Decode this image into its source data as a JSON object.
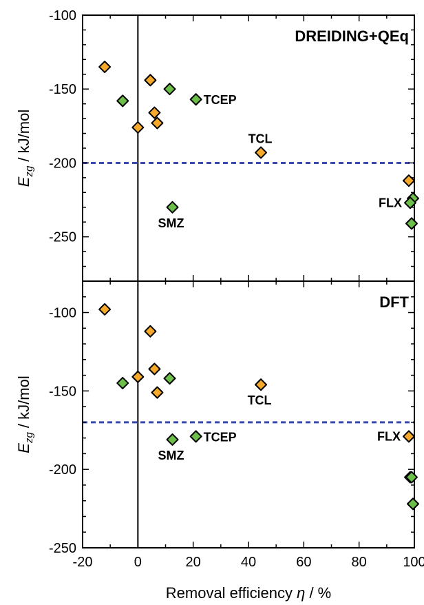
{
  "chart_data": [
    {
      "type": "scatter",
      "title": "DREIDING+QEq",
      "ylabel_main": "E",
      "ylabel_sub": "zg",
      "ylabel_unit": " / kJ/mol",
      "xlim": [
        -20,
        100
      ],
      "ylim": [
        -280,
        -100
      ],
      "yticks": [
        -100,
        -150,
        -200,
        -250
      ],
      "reference_line": {
        "axis": "y",
        "value": -200,
        "color": "#3d4ba8",
        "style": "dashed"
      },
      "vline": 0,
      "colors": {
        "orange": "#f7a92b",
        "green": "#6cc04a"
      },
      "points": [
        {
          "x": -12,
          "y": -135,
          "color": "orange"
        },
        {
          "x": -5.5,
          "y": -158,
          "color": "green"
        },
        {
          "x": 4.5,
          "y": -144,
          "color": "orange"
        },
        {
          "x": 11.5,
          "y": -150,
          "color": "green"
        },
        {
          "x": 21,
          "y": -157,
          "color": "green",
          "label": "TCEP",
          "label_pos": "right"
        },
        {
          "x": 6,
          "y": -166,
          "color": "orange"
        },
        {
          "x": 7,
          "y": -173,
          "color": "orange"
        },
        {
          "x": 0,
          "y": -176,
          "color": "orange"
        },
        {
          "x": 44.5,
          "y": -193,
          "color": "orange",
          "label": "TCL",
          "label_pos": "above"
        },
        {
          "x": 12.5,
          "y": -230,
          "color": "green",
          "label": "SMZ",
          "label_pos": "below"
        },
        {
          "x": 98,
          "y": -212,
          "color": "orange"
        },
        {
          "x": 99.5,
          "y": -224,
          "color": "green"
        },
        {
          "x": 98.5,
          "y": -227,
          "color": "green",
          "label": "FLX",
          "label_pos": "left"
        },
        {
          "x": 99,
          "y": -241,
          "color": "green"
        }
      ]
    },
    {
      "type": "scatter",
      "title": "DFT",
      "ylabel_main": "E",
      "ylabel_sub": "zg",
      "ylabel_unit": " / kJ/mol",
      "xlabel_main": "Removal efficiency ",
      "xlabel_sym": "η",
      "xlabel_unit": " / %",
      "xlim": [
        -20,
        100
      ],
      "ylim": [
        -250,
        -80
      ],
      "xticks": [
        -20,
        0,
        20,
        40,
        60,
        80,
        100
      ],
      "yticks": [
        -100,
        -150,
        -200,
        -250
      ],
      "reference_line": {
        "axis": "y",
        "value": -170,
        "color": "#3d4ba8",
        "style": "dashed"
      },
      "vline": 0,
      "colors": {
        "orange": "#f7a92b",
        "green": "#6cc04a"
      },
      "points": [
        {
          "x": -12,
          "y": -98,
          "color": "orange"
        },
        {
          "x": 4.5,
          "y": -112,
          "color": "orange"
        },
        {
          "x": 6,
          "y": -136,
          "color": "orange"
        },
        {
          "x": 0,
          "y": -141,
          "color": "orange"
        },
        {
          "x": -5.5,
          "y": -145,
          "color": "green"
        },
        {
          "x": 11.5,
          "y": -142,
          "color": "green"
        },
        {
          "x": 7,
          "y": -151,
          "color": "orange"
        },
        {
          "x": 44.5,
          "y": -146,
          "color": "orange",
          "label": "TCL",
          "label_pos": "below"
        },
        {
          "x": 12.5,
          "y": -181,
          "color": "green",
          "label": "SMZ",
          "label_pos": "below"
        },
        {
          "x": 21,
          "y": -179,
          "color": "green",
          "label": "TCEP",
          "label_pos": "right"
        },
        {
          "x": 98,
          "y": -179,
          "color": "orange",
          "label": "FLX",
          "label_pos": "left"
        },
        {
          "x": 98.5,
          "y": -205,
          "color": "green"
        },
        {
          "x": 99,
          "y": -205,
          "color": "green"
        },
        {
          "x": 99.5,
          "y": -222,
          "color": "green"
        }
      ]
    }
  ]
}
